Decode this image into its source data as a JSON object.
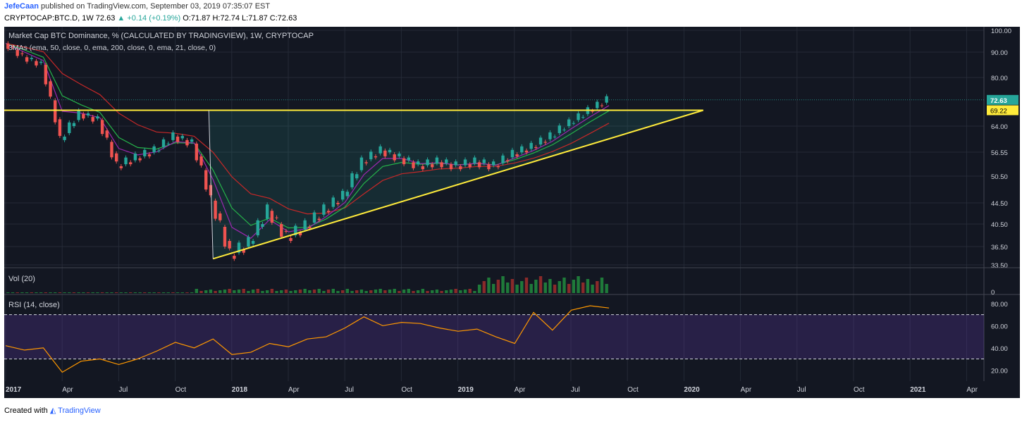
{
  "header": {
    "author": "JefeCaan",
    "published_text": "published on TradingView.com, September 03, 2019 07:35:07 EST",
    "symbol": "CRYPTOCAP:BTC.D, 1W",
    "last": "72.63",
    "arrow": "▲",
    "change": "+0.14 (+0.19%)",
    "ohlc": "O:71.87 H:72.74 L:71.87 C:72.63"
  },
  "footer": {
    "created_with": "Created with",
    "brand": "TradingView"
  },
  "colors": {
    "background": "#131722",
    "up": "#26a69a",
    "down": "#ef5350",
    "ema50": "#26b34a",
    "ema200": "#c62828",
    "ema21": "#9c27b0",
    "trendline": "#ffeb3b",
    "rsi": "#ff9800"
  },
  "chart_data": [
    {
      "type": "candlestick",
      "title": "Market Cap BTC Dominance, % (CALCULATED BY TRADINGVIEW), 1W, CRYPTOCAP",
      "subtitle": "3MAs (ema, 50, close, 0, ema, 200, close, 0, ema, 21, close, 0)",
      "ylim": [
        33.5,
        100
      ],
      "y_ticks": [
        "100.00",
        "90.00",
        "80.00",
        "64.00",
        "56.55",
        "50.50",
        "44.50",
        "40.50",
        "36.50",
        "33.50"
      ],
      "price_labels": {
        "last": "72.63",
        "horizontal_level": "69.22"
      },
      "x_ticks": [
        "2017",
        "Apr",
        "Jul",
        "Oct",
        "2018",
        "Apr",
        "Jul",
        "Oct",
        "2019",
        "Apr",
        "Jul",
        "Oct",
        "2020",
        "Apr",
        "Jul",
        "Oct",
        "2021",
        "Apr"
      ],
      "series": [
        {
          "name": "BTC Dominance",
          "x": [
            "2017-01",
            "2017-02",
            "2017-03",
            "2017-04",
            "2017-05",
            "2017-06",
            "2017-07",
            "2017-08",
            "2017-09",
            "2017-10",
            "2017-11",
            "2017-12",
            "2018-01",
            "2018-02",
            "2018-03",
            "2018-04",
            "2018-05",
            "2018-06",
            "2018-07",
            "2018-08",
            "2018-09",
            "2018-10",
            "2018-11",
            "2018-12",
            "2019-01",
            "2019-02",
            "2019-03",
            "2019-04",
            "2019-05",
            "2019-06",
            "2019-07",
            "2019-08",
            "2019-09"
          ],
          "close": [
            94,
            88,
            85,
            60,
            68,
            66,
            53,
            55,
            57,
            61,
            59,
            45,
            35,
            37,
            43,
            38,
            40,
            43,
            46,
            54,
            57,
            55,
            53,
            54,
            53,
            54,
            53,
            56,
            58,
            61,
            65,
            69,
            72.63
          ]
        }
      ],
      "annotations": {
        "horizontal_level": 69.22,
        "ascending_trendline": {
          "from": [
            "2017-12",
            34.5
          ],
          "to": [
            "2020-02",
            69.22
          ]
        }
      }
    },
    {
      "type": "bar",
      "title": "Vol (20)",
      "y_ticks": [
        "0"
      ]
    },
    {
      "type": "line",
      "title": "RSI (14, close)",
      "ylim": [
        10,
        85
      ],
      "y_ticks": [
        "80.00",
        "60.00",
        "40.00",
        "20.00"
      ],
      "bands": [
        70,
        30
      ],
      "series": [
        {
          "name": "RSI",
          "x": [
            "2017-01",
            "2017-02",
            "2017-03",
            "2017-04",
            "2017-05",
            "2017-06",
            "2017-07",
            "2017-08",
            "2017-09",
            "2017-10",
            "2017-11",
            "2017-12",
            "2018-01",
            "2018-02",
            "2018-03",
            "2018-04",
            "2018-05",
            "2018-06",
            "2018-07",
            "2018-08",
            "2018-09",
            "2018-10",
            "2018-11",
            "2018-12",
            "2019-01",
            "2019-02",
            "2019-03",
            "2019-04",
            "2019-05",
            "2019-06",
            "2019-07",
            "2019-08",
            "2019-09"
          ],
          "values": [
            42,
            38,
            40,
            18,
            28,
            30,
            25,
            30,
            37,
            45,
            40,
            48,
            34,
            36,
            44,
            41,
            48,
            50,
            58,
            68,
            60,
            63,
            62,
            58,
            55,
            57,
            50,
            44,
            72,
            56,
            74,
            78,
            76
          ]
        }
      ]
    }
  ]
}
